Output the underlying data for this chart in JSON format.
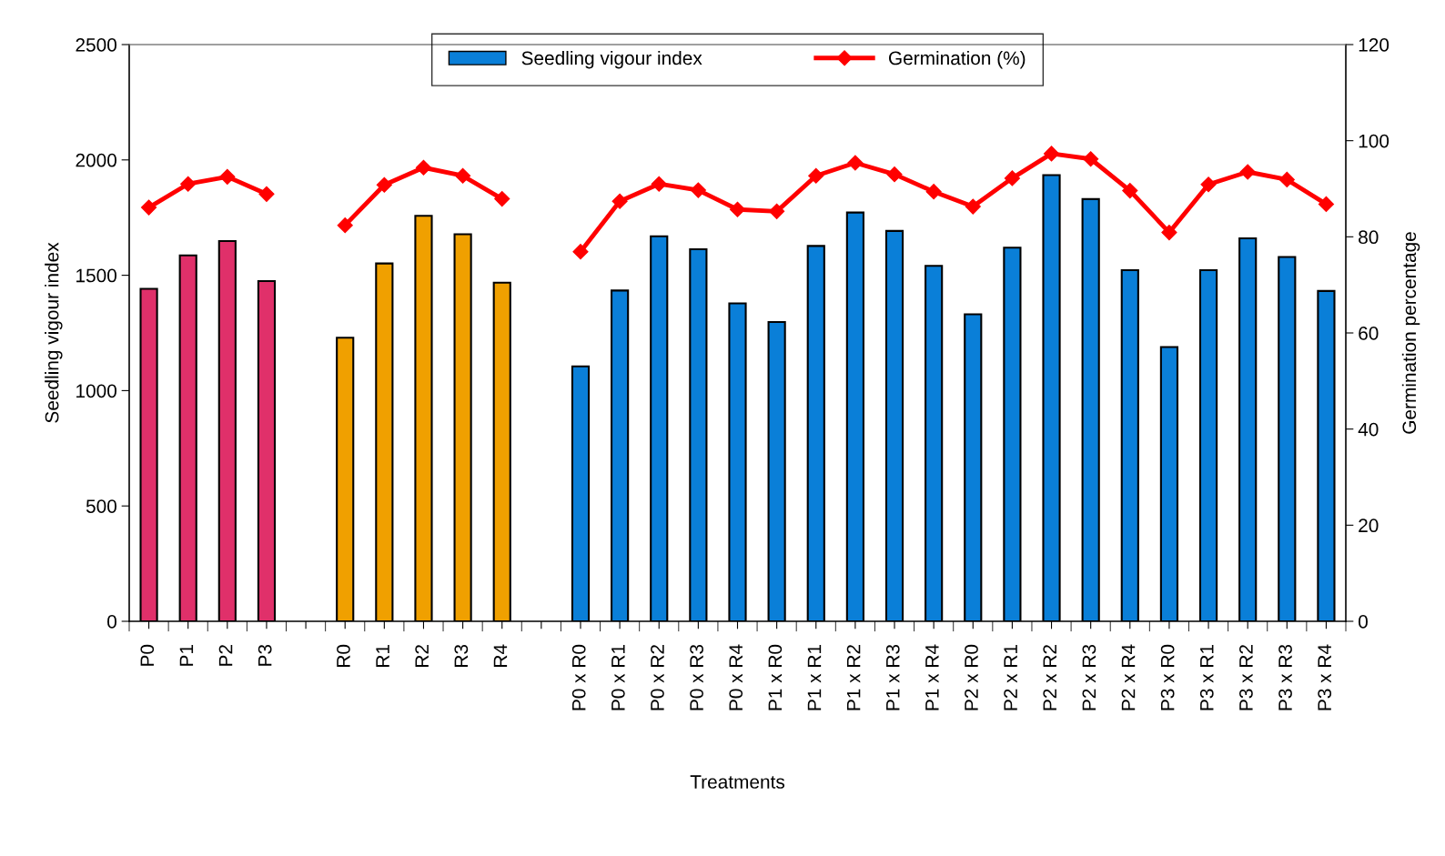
{
  "chart_data": {
    "type": "bar",
    "xlabel": "Treatments",
    "ylabel": "Seedling vigour index",
    "y2label": "Germination percentage",
    "categories": [
      "P0",
      "P1",
      "P2",
      "P3",
      null,
      "R0",
      "R1",
      "R2",
      "R3",
      "R4",
      null,
      "P0 x R0",
      "P0 x R1",
      "P0 x R2",
      "P0 x R3",
      "P0 x R4",
      "P1 x R0",
      "P1 x R1",
      "P1 x R2",
      "P1 x R3",
      "P1 x R4",
      "P2 x R0",
      "P2 x R1",
      "P2 x R2",
      "P2 x R3",
      "P2 x R4",
      "P3 x R0",
      "P3 x R1",
      "P3 x R2",
      "P3 x R3",
      "P3 x R4"
    ],
    "series": [
      {
        "name": "Seedling vigour index",
        "color": "#0a7fd8",
        "colors": [
          "#e0306a",
          "#e0306a",
          "#e0306a",
          "#e0306a",
          null,
          "#f0a000",
          "#f0a000",
          "#f0a000",
          "#f0a000",
          "#f0a000",
          null,
          "#0a7fd8",
          "#0a7fd8",
          "#0a7fd8",
          "#0a7fd8",
          "#0a7fd8",
          "#0a7fd8",
          "#0a7fd8",
          "#0a7fd8",
          "#0a7fd8",
          "#0a7fd8",
          "#0a7fd8",
          "#0a7fd8",
          "#0a7fd8",
          "#0a7fd8",
          "#0a7fd8",
          "#0a7fd8",
          "#0a7fd8",
          "#0a7fd8",
          "#0a7fd8",
          "#0a7fd8"
        ],
        "values": [
          1441,
          1586,
          1648,
          1475,
          null,
          1229,
          1551,
          1758,
          1678,
          1468,
          null,
          1105,
          1434,
          1669,
          1613,
          1378,
          1297,
          1627,
          1772,
          1692,
          1541,
          1331,
          1620,
          1934,
          1830,
          1522,
          1189,
          1522,
          1660,
          1579,
          1432
        ]
      },
      {
        "name": "Germination (%)",
        "type": "line",
        "axis": "y2",
        "color": "#ff0000",
        "marker": "diamond",
        "line_style": "solid",
        "values": [
          86.1,
          91.0,
          92.5,
          88.9,
          null,
          82.4,
          90.8,
          94.4,
          92.7,
          87.9,
          null,
          76.9,
          87.4,
          91.0,
          89.7,
          85.7,
          85.3,
          92.7,
          95.4,
          93.0,
          89.4,
          86.3,
          92.2,
          97.3,
          96.2,
          89.6,
          80.9,
          90.9,
          93.5,
          91.9,
          86.8
        ]
      }
    ],
    "ylim": [
      0,
      2500
    ],
    "yticks": [
      0,
      500,
      1000,
      1500,
      2000,
      2500
    ],
    "y2lim": [
      0,
      120
    ],
    "y2ticks": [
      0,
      20,
      40,
      60,
      80,
      100,
      120
    ],
    "grid": false,
    "legend": "top"
  }
}
